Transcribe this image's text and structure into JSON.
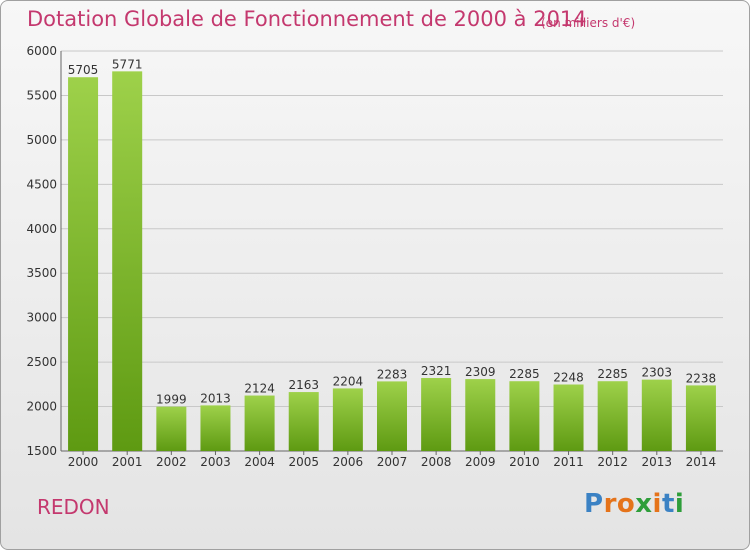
{
  "title": "Dotation Globale de Fonctionnement de 2000 à 2014",
  "unit_note": "(en milliers d'€)",
  "commune": "REDON",
  "logo": {
    "text": "Proxiti",
    "letters": [
      "P",
      "r",
      "o",
      "x",
      "i",
      "t",
      "i"
    ],
    "colors": [
      "#3b82c4",
      "#e5731a",
      "#e5731a",
      "#2e9e3a",
      "#e5731a",
      "#3b82c4",
      "#2e9e3a"
    ]
  },
  "colors": {
    "title": "#c4386e",
    "bar_light": "#9ed14a",
    "bar_dark": "#5e9a12",
    "grid": "#c8c8c8",
    "axis_text": "#333333"
  },
  "chart_data": {
    "type": "bar",
    "categories": [
      "2000",
      "2001",
      "2002",
      "2003",
      "2004",
      "2005",
      "2006",
      "2007",
      "2008",
      "2009",
      "2010",
      "2011",
      "2012",
      "2013",
      "2014"
    ],
    "values": [
      5705,
      5771,
      1999,
      2013,
      2124,
      2163,
      2204,
      2283,
      2321,
      2309,
      2285,
      2248,
      2285,
      2303,
      2238
    ],
    "ylim": [
      1500,
      6000
    ],
    "yticks": [
      1500,
      2000,
      2500,
      3000,
      3500,
      4000,
      4500,
      5000,
      5500,
      6000
    ],
    "grid": true,
    "data_labels": true
  }
}
